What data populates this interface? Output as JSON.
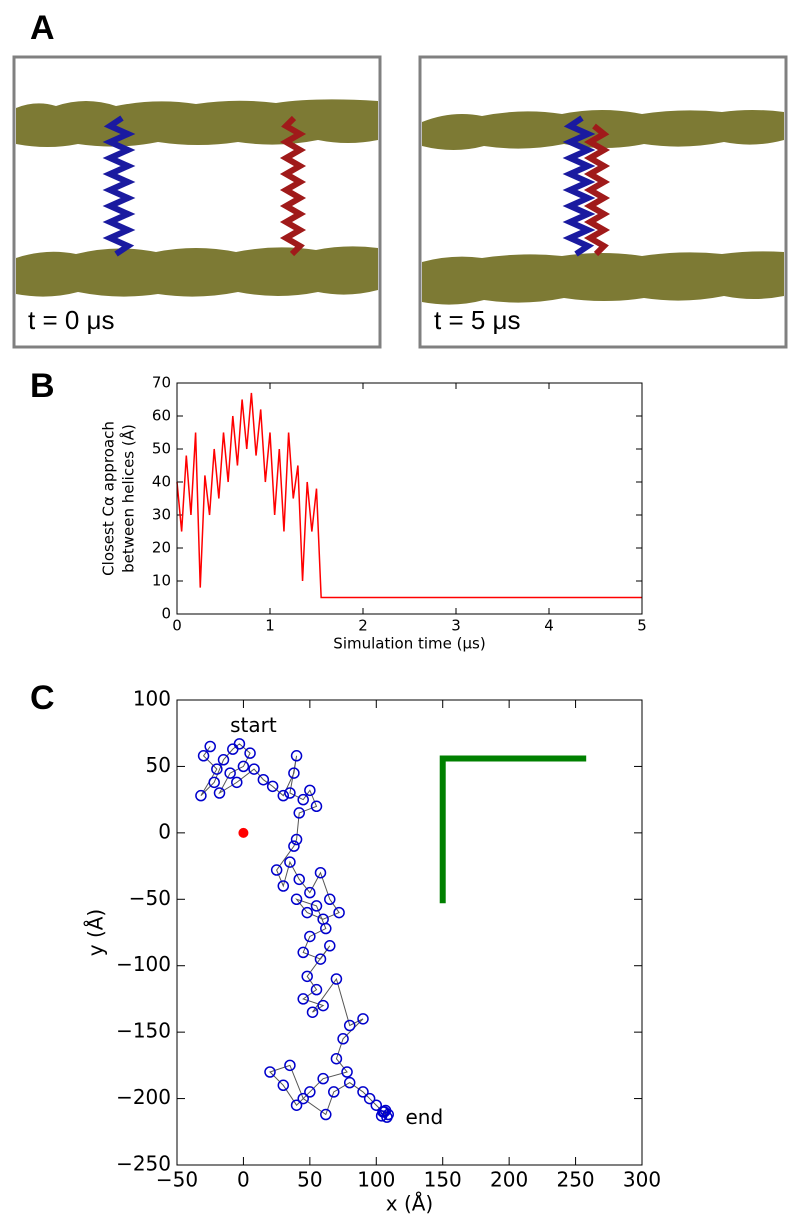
{
  "panel_a": {
    "label": "A",
    "captions": [
      "t = 0 μs",
      "t = 5 μs"
    ]
  },
  "chart_data": [
    {
      "type": "line",
      "panel_label": "B",
      "xlabel": "Simulation time (μs)",
      "ylabel": [
        "Closest Cα approach",
        "between helices (Å)"
      ],
      "color": "#ff0000",
      "x": [
        0,
        0.05,
        0.1,
        0.15,
        0.2,
        0.25,
        0.3,
        0.35,
        0.4,
        0.45,
        0.5,
        0.55,
        0.6,
        0.65,
        0.7,
        0.75,
        0.8,
        0.85,
        0.9,
        0.95,
        1.0,
        1.05,
        1.1,
        1.15,
        1.2,
        1.25,
        1.3,
        1.35,
        1.4,
        1.45,
        1.5,
        1.55,
        1.6,
        2,
        2.5,
        3,
        3.5,
        4,
        4.5,
        5
      ],
      "values": [
        40,
        25,
        48,
        30,
        55,
        8,
        42,
        30,
        50,
        35,
        55,
        40,
        60,
        45,
        65,
        50,
        67,
        48,
        62,
        40,
        55,
        30,
        50,
        25,
        55,
        35,
        45,
        10,
        40,
        25,
        38,
        5,
        5,
        5,
        5,
        5,
        5,
        5,
        5,
        5
      ],
      "xlim": [
        0,
        5
      ],
      "xticks": [
        0,
        1,
        2,
        3,
        4,
        5
      ],
      "ylim": [
        0,
        70
      ],
      "yticks": [
        0,
        10,
        20,
        30,
        40,
        50,
        60,
        70
      ]
    },
    {
      "type": "scatter",
      "panel_label": "C",
      "xlabel": "x (Å)",
      "ylabel": "y (Å)",
      "color": "#0000cc",
      "line_color": "#555555",
      "x": [
        -25,
        -30,
        -20,
        -32,
        -22,
        -15,
        -8,
        -3,
        5,
        0,
        -10,
        -18,
        -5,
        8,
        15,
        22,
        30,
        38,
        40,
        35,
        45,
        50,
        55,
        42,
        40,
        38,
        25,
        30,
        35,
        42,
        50,
        58,
        65,
        72,
        60,
        48,
        40,
        55,
        62,
        50,
        45,
        58,
        65,
        48,
        55,
        45,
        60,
        52,
        70,
        80,
        90,
        75,
        70,
        78,
        60,
        50,
        40,
        30,
        20,
        35,
        45,
        62,
        68,
        80,
        90,
        95,
        100,
        105,
        108,
        106,
        104,
        107,
        109
      ],
      "y": [
        65,
        58,
        48,
        28,
        38,
        55,
        63,
        67,
        60,
        50,
        45,
        30,
        38,
        48,
        40,
        35,
        28,
        45,
        58,
        30,
        25,
        32,
        20,
        15,
        -5,
        -10,
        -28,
        -40,
        -22,
        -35,
        -45,
        -30,
        -50,
        -60,
        -65,
        -60,
        -50,
        -55,
        -72,
        -78,
        -90,
        -95,
        -85,
        -108,
        -118,
        -125,
        -130,
        -135,
        -110,
        -145,
        -140,
        -155,
        -170,
        -180,
        -185,
        -195,
        -205,
        -190,
        -180,
        -175,
        -200,
        -212,
        -195,
        -188,
        -195,
        -200,
        -205,
        -210,
        -214,
        -210,
        -213,
        -209,
        -212
      ],
      "origin_point": {
        "x": 0,
        "y": 0,
        "color": "#ff0000"
      },
      "l_shape": {
        "x": [
          150,
          150,
          258
        ],
        "y": [
          -53,
          56,
          56
        ],
        "color": "#008000"
      },
      "annotations": [
        {
          "text": "start",
          "x": -10,
          "y": 80
        },
        {
          "text": "end",
          "x": 122,
          "y": -215
        }
      ],
      "xlim": [
        -50,
        300
      ],
      "xticks": [
        {
          "value": -50,
          "label": "−50"
        },
        0,
        50,
        100,
        150,
        200,
        250,
        300
      ],
      "ylim": [
        -250,
        100
      ],
      "yticks": [
        {
          "value": -250,
          "label": "−250"
        },
        {
          "value": -200,
          "label": "−200"
        },
        {
          "value": -150,
          "label": "−150"
        },
        {
          "value": -100,
          "label": "−100"
        },
        {
          "value": -50,
          "label": "−50"
        },
        0,
        50,
        100
      ]
    }
  ]
}
